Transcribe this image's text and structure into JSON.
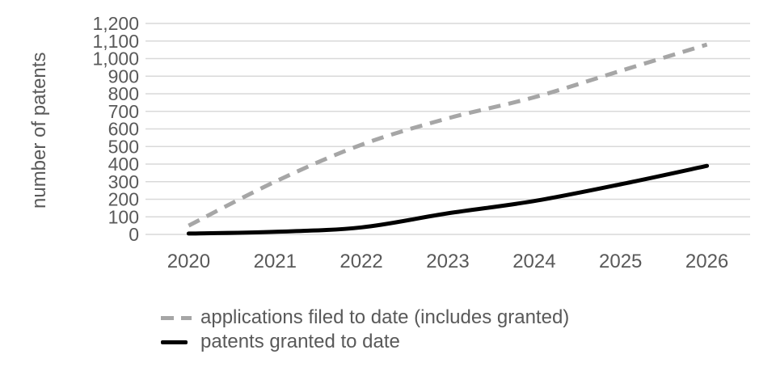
{
  "colors": {
    "background": "#ffffff",
    "grid": "#d9d9d9",
    "text": "#595959",
    "applications_line": "#a6a6a6",
    "granted_line": "#000000"
  },
  "chart_data": {
    "type": "line",
    "title": "",
    "xlabel": "",
    "ylabel": "number of patents",
    "grid": true,
    "legend_position": "bottom-left",
    "categories": [
      "2020",
      "2021",
      "2022",
      "2023",
      "2024",
      "2025",
      "2026"
    ],
    "y_axis": {
      "min": 0,
      "max": 1200,
      "step": 100,
      "tick_labels": [
        "0",
        "100",
        "200",
        "300",
        "400",
        "500",
        "600",
        "700",
        "800",
        "900",
        "1,000",
        "1,100",
        "1,200"
      ]
    },
    "series": [
      {
        "id": "applications",
        "name": "applications filed to date (includes granted)",
        "style": "dashed",
        "color": "#a6a6a6",
        "values": [
          50,
          300,
          510,
          660,
          780,
          930,
          1080
        ]
      },
      {
        "id": "granted",
        "name": "patents granted to date",
        "style": "solid",
        "color": "#000000",
        "values": [
          5,
          15,
          40,
          120,
          190,
          285,
          390
        ]
      }
    ]
  }
}
